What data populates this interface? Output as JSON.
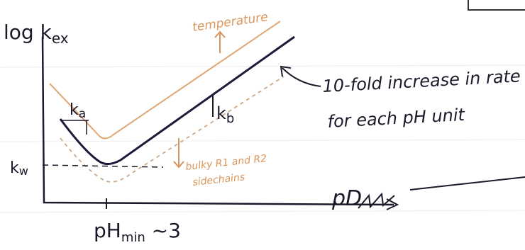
{
  "y_axis_label": {
    "main": "log k",
    "sub": "ex"
  },
  "x_axis_label": {
    "main": "pH",
    "sub": "min",
    "suffix": " ~3"
  },
  "x_axis_end_label": "pD",
  "curve_labels": {
    "ka": {
      "main": "k",
      "sub": "a"
    },
    "kb": {
      "main": "k",
      "sub": "b"
    },
    "kw": {
      "main": "k",
      "sub": "w"
    }
  },
  "temperature_label": "temperature",
  "bulky_label": [
    "bulky R1 and R2",
    "sidechains"
  ],
  "annotation": [
    "10-fold increase in rate",
    "for each pH unit"
  ]
}
